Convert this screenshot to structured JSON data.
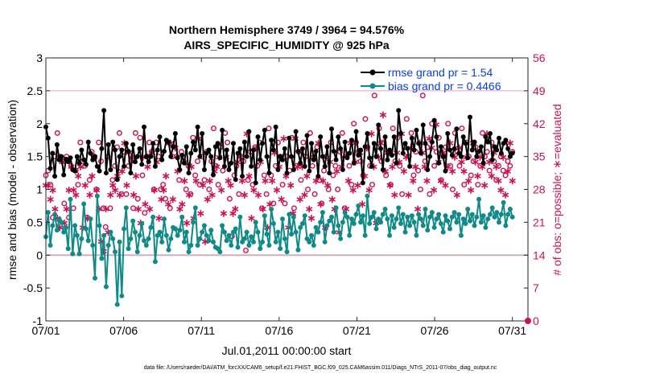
{
  "chart_data": {
    "type": "line",
    "title": "Northern Hemisphere 3749 / 3964 = 94.576%",
    "subtitle": "AIRS_SPECIFIC_HUMIDITY @ 925 hPa",
    "xlabel": "Jul.01,2011 00:00:00 start",
    "ylabel": "rmse and bias (model - observation)",
    "ylabel_right": "# of obs: o=possible; ∗=evaluated",
    "x_tick_labels": [
      "07/01",
      "07/06",
      "07/11",
      "07/16",
      "07/21",
      "07/26",
      "07/31"
    ],
    "x_tick_values": [
      0,
      5,
      10,
      15,
      20,
      25,
      30
    ],
    "xlim": [
      0,
      31
    ],
    "ylim": [
      -1,
      3
    ],
    "y_ticks": [
      "-1",
      "-0.5",
      "0",
      "0.5",
      "1",
      "1.5",
      "2",
      "2.5",
      "3"
    ],
    "ylim_right": [
      0,
      56
    ],
    "y_ticks_right": [
      "0",
      "7",
      "14",
      "21",
      "28",
      "35",
      "42",
      "49",
      "56"
    ],
    "footnote": "data file: /Users/raeder/DAI/ATM_forcXX/CAM6_setup/f.e21.FHIST_BGC.f09_025.CAM6assim.011/Diags_NTrS_2011-07/obs_diag_output.nc",
    "legend_position": "top-right",
    "series": [
      {
        "name": "rmse grand pr = 1.54",
        "color": "#000000",
        "values": [
          1.95,
          1.78,
          1.32,
          1.55,
          1.2,
          1.68,
          1.45,
          1.5,
          1.22,
          1.46,
          1.42,
          1.48,
          1.3,
          1.28,
          1.5,
          1.4,
          1.6,
          1.45,
          1.38,
          1.72,
          1.55,
          1.45,
          1.5,
          1.35,
          1.28,
          1.62,
          2.2,
          1.25,
          1.68,
          1.3,
          1.72,
          1.6,
          1.15,
          1.5,
          1.6,
          1.35,
          1.7,
          1.58,
          1.25,
          1.68,
          1.42,
          1.5,
          1.62,
          1.38,
          1.95,
          1.5,
          1.42,
          1.5,
          1.7,
          1.35,
          1.6,
          1.8,
          1.45,
          1.58,
          1.75,
          1.72,
          1.5,
          1.65,
          1.85,
          1.48,
          1.3,
          1.52,
          1.4,
          1.65,
          1.25,
          1.55,
          1.72,
          1.6,
          1.95,
          1.5,
          1.85,
          1.3,
          1.55,
          1.6,
          1.5,
          1.22,
          1.65,
          1.7,
          1.48,
          1.9,
          1.35,
          1.6,
          1.3,
          1.4,
          1.7,
          1.15,
          1.55,
          1.62,
          1.2,
          1.72,
          1.5,
          1.88,
          1.35,
          1.6,
          1.1,
          1.8,
          1.45,
          1.7,
          1.9,
          1.5,
          1.25,
          1.75,
          1.6,
          1.95,
          1.3,
          1.5,
          1.45,
          1.62,
          1.25,
          1.78,
          1.5,
          1.3,
          1.88,
          1.58,
          1.4,
          1.62,
          1.35,
          1.82,
          1.28,
          1.7,
          1.45,
          1.58,
          1.2,
          1.8,
          1.5,
          1.35,
          1.65,
          1.25,
          1.92,
          1.58,
          1.45,
          1.8,
          1.62,
          1.3,
          1.72,
          1.48,
          1.55,
          1.75,
          1.4,
          1.88,
          1.52,
          1.6,
          1.1,
          1.65,
          1.85,
          1.48,
          1.35,
          1.7,
          1.5,
          1.98,
          1.62,
          1.3,
          1.8,
          1.45,
          1.6,
          1.52,
          1.8,
          1.4,
          2.2,
          1.85,
          1.55,
          1.7,
          1.62,
          1.35,
          1.78,
          1.6,
          1.9,
          1.7,
          1.55,
          1.98,
          1.7,
          1.3,
          1.5,
          1.72,
          2.05,
          1.8,
          1.4,
          1.65,
          1.5,
          1.28,
          1.85,
          1.6,
          1.52,
          1.62,
          1.92,
          1.55,
          1.5,
          1.8,
          1.7,
          1.48,
          2.1,
          1.6,
          1.72,
          1.5,
          1.58,
          1.65,
          1.4,
          1.8,
          1.72,
          1.85,
          1.45,
          1.65,
          1.6,
          1.78,
          1.55,
          1.7,
          1.75,
          1.62,
          1.5,
          1.55
        ]
      },
      {
        "name": "bias grand pr = 0.4466",
        "color": "#0f8a88",
        "values": [
          0.28,
          0.65,
          0.15,
          0.45,
          0.62,
          0.38,
          0.55,
          0.5,
          0.35,
          0.42,
          0.1,
          0.85,
          0.02,
          0.45,
          0.3,
          0.02,
          0.25,
          0.78,
          0.4,
          0.22,
          0.55,
          0.15,
          -0.35,
          0.9,
          0.45,
          -0.05,
          0.3,
          -0.48,
          0.15,
          0.35,
          0.25,
          0.05,
          -0.75,
          0.2,
          -0.62,
          0.4,
          0.72,
          0.1,
          0.25,
          0.52,
          0.35,
          0.05,
          0.3,
          0.48,
          0.22,
          0.15,
          0.25,
          0.42,
          0.58,
          -0.1,
          0.3,
          0.35,
          0.2,
          0.55,
          0.3,
          0.08,
          0.25,
          0.42,
          0.4,
          0.3,
          0.38,
          0.58,
          0.2,
          0.35,
          0.05,
          0.15,
          0.5,
          0.72,
          0.15,
          0.25,
          0.35,
          0.45,
          0.3,
          0.22,
          0.38,
          0.2,
          0.12,
          0.1,
          0.05,
          0.45,
          0.35,
          0.22,
          0.3,
          0.15,
          0.35,
          0.4,
          0.12,
          0.58,
          0.2,
          0.25,
          0.35,
          0.15,
          0.28,
          0.2,
          0.5,
          0.35,
          0.1,
          0.2,
          0.6,
          0.32,
          0.15,
          0.7,
          0.48,
          0.2,
          0.35,
          0.1,
          0.55,
          0.25,
          0.05,
          0.62,
          0.32,
          0.58,
          0.35,
          0.08,
          0.42,
          0.48,
          0.6,
          0.25,
          0.2,
          0.3,
          0.15,
          0.42,
          0.35,
          0.5,
          0.65,
          0.2,
          0.45,
          0.52,
          0.58,
          0.35,
          0.72,
          0.45,
          0.25,
          0.5,
          0.65,
          0.58,
          0.3,
          0.55,
          0.48,
          0.62,
          0.75,
          0.5,
          0.6,
          0.3,
          0.9,
          0.48,
          0.58,
          0.65,
          0.4,
          0.55,
          0.5,
          0.62,
          0.7,
          0.55,
          0.3,
          0.6,
          0.42,
          0.55,
          0.72,
          0.48,
          0.62,
          0.35,
          0.58,
          0.45,
          0.6,
          0.5,
          0.3,
          0.62,
          0.55,
          0.45,
          0.7,
          0.38,
          0.58,
          0.65,
          0.42,
          0.55,
          0.62,
          0.48,
          0.35,
          0.6,
          0.52,
          0.4,
          0.58,
          0.65,
          0.5,
          0.62,
          0.3,
          0.55,
          0.48,
          0.7,
          0.52,
          0.62,
          0.45,
          0.58,
          0.85,
          0.5,
          0.6,
          0.42,
          0.55,
          0.62,
          0.72,
          0.58,
          0.65,
          0.5,
          0.62,
          0.8,
          0.45,
          0.62,
          0.7,
          0.58
        ]
      },
      {
        "name": "# of obs possible (o)",
        "axis": "right",
        "color": "#cc1155",
        "values": [
          31,
          32,
          29,
          22,
          35,
          40,
          35,
          34,
          25,
          35,
          22,
          33,
          24,
          32,
          29,
          38,
          34,
          33,
          22,
          30,
          36,
          35,
          28,
          38,
          34,
          24,
          20,
          35,
          24,
          30,
          33,
          37,
          40,
          27,
          36,
          27,
          33,
          34,
          24,
          40,
          26,
          39,
          31,
          23,
          35,
          38,
          36,
          28,
          38,
          35,
          28,
          29,
          26,
          38,
          24,
          35,
          37,
          35,
          30,
          36,
          34,
          28,
          33,
          27,
          39,
          31,
          34,
          29,
          35,
          30,
          36,
          28,
          34,
          41,
          33,
          29,
          37,
          32,
          40,
          38,
          26,
          18,
          31,
          33,
          27,
          35,
          34,
          15,
          30,
          36,
          29,
          37,
          33,
          38,
          24,
          31,
          27,
          41,
          31,
          25,
          33,
          38,
          35,
          29,
          25,
          35,
          32,
          39,
          24,
          33,
          36,
          30,
          38,
          35,
          28,
          40,
          33,
          27,
          37,
          30,
          25,
          32,
          35,
          28,
          38,
          31,
          33,
          28,
          36,
          40,
          24,
          35,
          33,
          29,
          42,
          38,
          36,
          34,
          31,
          43,
          37,
          33,
          29,
          48,
          37,
          41,
          34,
          38,
          31,
          36,
          29,
          41,
          34,
          39,
          33,
          27,
          37,
          43,
          35,
          40,
          31,
          36,
          32,
          28,
          48,
          34,
          37,
          27,
          42,
          33,
          36,
          39,
          30,
          35,
          37,
          42,
          33,
          28,
          40,
          36,
          33,
          41,
          29,
          38,
          35,
          31,
          34,
          37,
          29,
          33,
          40,
          35,
          36,
          32,
          38,
          34,
          30,
          33,
          35,
          32,
          31,
          34,
          33,
          36
        ]
      },
      {
        "name": "# of obs evaluated (∗)",
        "axis": "right",
        "color": "#cc1155",
        "values": [
          29,
          29,
          26,
          28,
          24,
          22,
          20,
          34,
          21,
          24,
          28,
          33,
          28,
          27,
          31,
          33,
          20,
          29,
          22,
          27,
          31,
          35,
          28,
          24,
          17,
          15,
          24,
          19,
          27,
          29,
          28,
          31,
          27,
          32,
          38,
          29,
          36,
          35,
          27,
          31,
          24,
          21,
          35,
          25,
          33,
          24,
          36,
          28,
          34,
          22,
          26,
          28,
          31,
          25,
          38,
          26,
          37,
          32,
          24,
          25,
          30,
          21,
          27,
          33,
          22,
          30,
          39,
          23,
          29,
          17,
          26,
          30,
          27,
          32,
          33,
          35,
          28,
          23,
          35,
          30,
          29,
          23,
          24,
          34,
          35,
          30,
          27,
          40,
          31,
          22,
          28,
          37,
          27,
          34,
          24,
          30,
          20,
          25,
          30,
          36,
          28,
          33,
          26,
          39,
          31,
          20,
          29,
          23,
          39,
          33,
          26,
          33,
          27,
          31,
          24,
          22,
          35,
          30,
          38,
          25,
          30,
          20,
          29,
          34,
          26,
          24,
          32,
          19,
          33,
          35,
          24,
          30,
          38,
          28,
          34,
          29,
          36,
          25,
          31,
          37,
          28,
          40,
          33,
          21,
          35,
          38,
          44,
          32,
          36,
          29,
          33,
          27,
          36,
          34,
          40,
          32,
          35,
          27,
          37,
          30,
          33,
          24,
          38,
          36,
          33,
          30,
          39,
          37,
          28,
          42,
          34,
          30,
          36,
          29,
          33,
          38,
          32,
          35,
          27,
          37,
          34,
          32,
          35,
          30,
          28,
          38,
          34,
          31,
          35,
          33,
          29,
          40,
          34,
          31,
          36,
          33,
          30,
          28,
          35,
          27,
          32,
          38,
          30
        ]
      }
    ]
  },
  "legend": {
    "rmse_label": "rmse grand pr = 1.54",
    "bias_label": "bias grand pr = 0.4466",
    "rmse_color": "#0a3fe0",
    "bias_color": "#0a3fe0"
  },
  "colors": {
    "rmse": "#000000",
    "bias": "#0f8a88",
    "obs": "#cc1155",
    "zero_line": "#bdbdbd"
  }
}
